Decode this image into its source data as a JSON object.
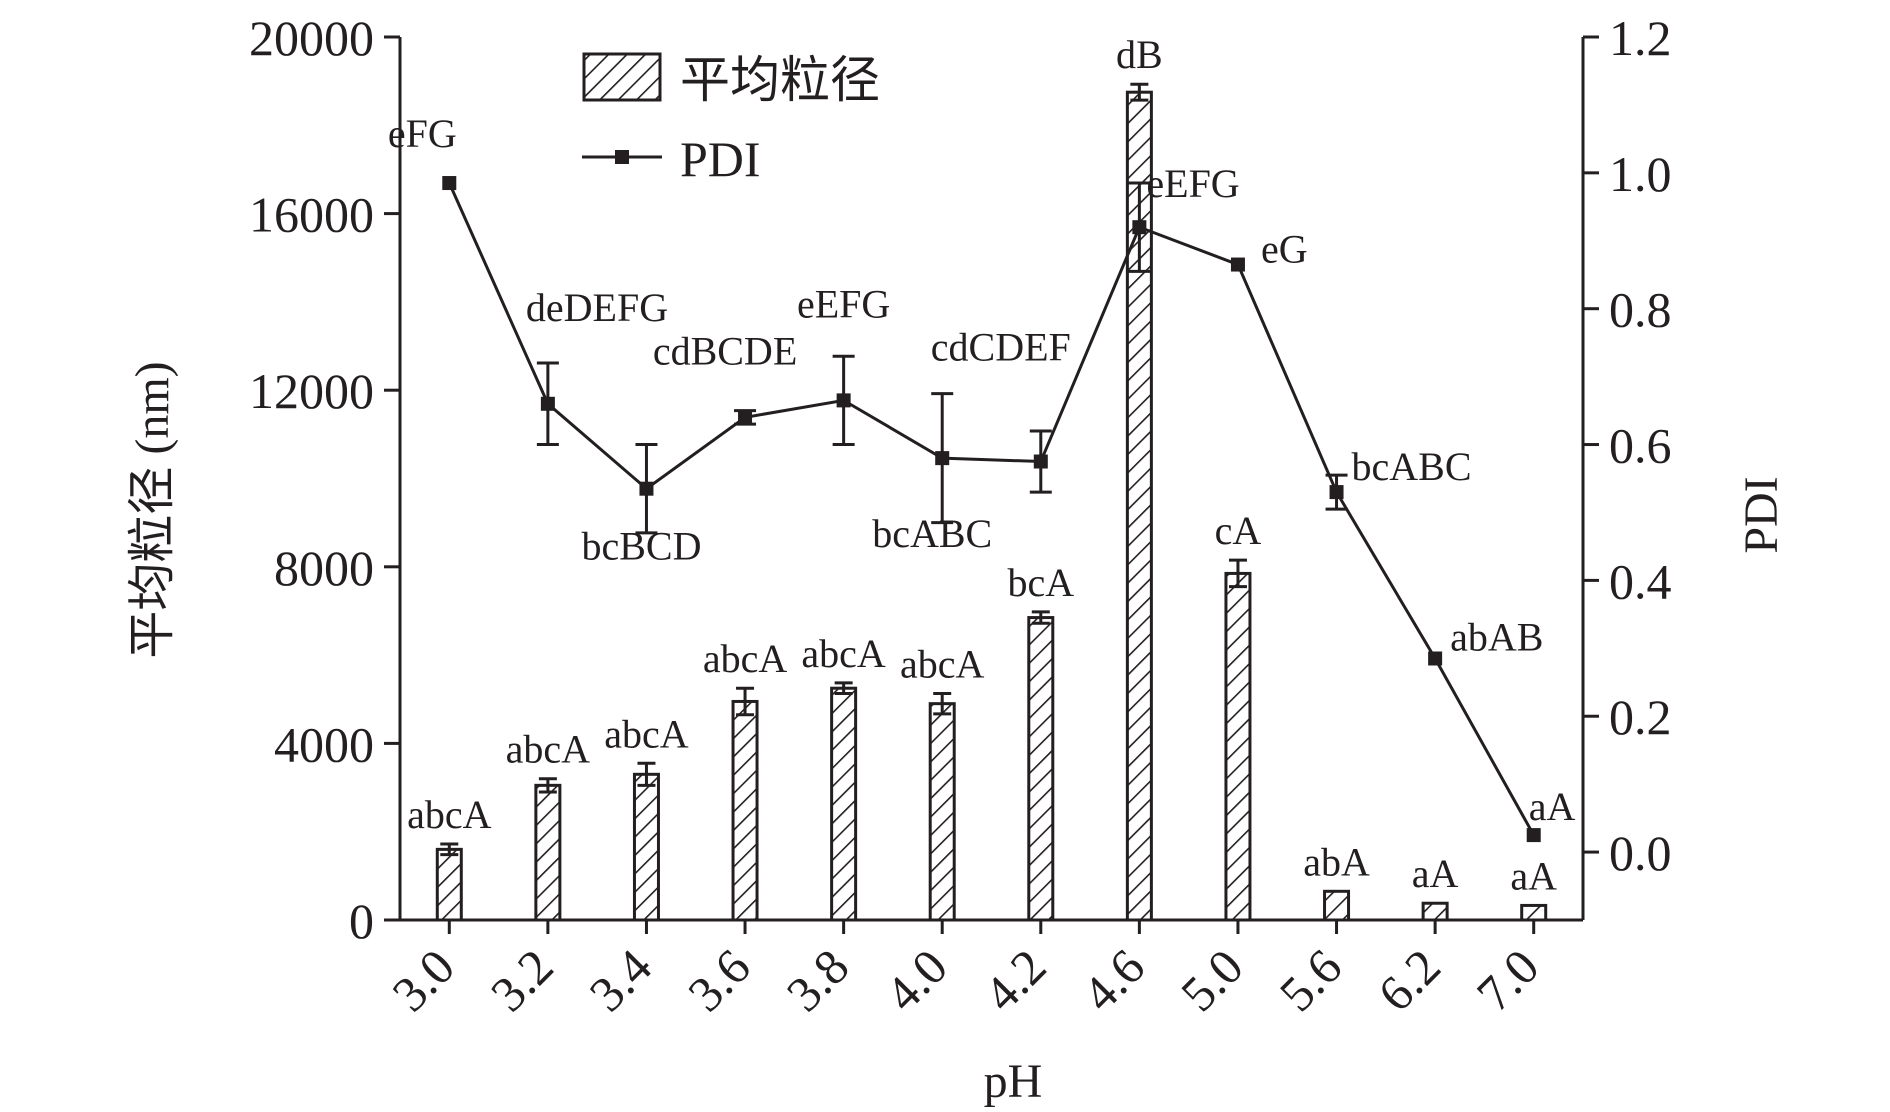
{
  "chart_data": {
    "type": "bar",
    "categories": [
      "3.0",
      "3.2",
      "3.4",
      "3.6",
      "3.8",
      "4.0",
      "4.2",
      "4.6",
      "5.0",
      "5.6",
      "6.2",
      "7.0"
    ],
    "xlabel": "pH",
    "ylabel_left": "平均粒径 (nm)",
    "ylabel_right": "PDI",
    "ylim_left": [
      0,
      20000
    ],
    "ylim_right": [
      -0.1,
      1.2
    ],
    "yticks_left": [
      "0",
      "4000",
      "8000",
      "12000",
      "16000",
      "20000"
    ],
    "yticks_right": [
      "0.0",
      "0.2",
      "0.4",
      "0.6",
      "0.8",
      "1.0",
      "1.2"
    ],
    "legend_position": "top-left",
    "grid": false,
    "series": [
      {
        "name": "平均粒径",
        "kind": "bar",
        "axis": "left",
        "pattern": "hatched",
        "values": [
          1600,
          3050,
          3300,
          4950,
          5250,
          4900,
          6850,
          18750,
          7850,
          650,
          380,
          330
        ],
        "errors": [
          120,
          150,
          250,
          300,
          120,
          230,
          130,
          180,
          300,
          0,
          0,
          0
        ],
        "labels": [
          "abcA",
          "abcA",
          "abcA",
          "abcA",
          "abcA",
          "abcA",
          "bcA",
          "dB",
          "cA",
          "abA",
          "aA",
          "aA"
        ]
      },
      {
        "name": "PDI",
        "kind": "line",
        "axis": "right",
        "color": "#231f20",
        "values": [
          0.985,
          0.66,
          0.535,
          0.64,
          0.665,
          0.58,
          0.575,
          0.92,
          0.865,
          0.53,
          0.285,
          0.025
        ],
        "errors": [
          0,
          0.06,
          0.065,
          0.01,
          0.065,
          0.095,
          0.045,
          0.065,
          0,
          0.025,
          0,
          0
        ],
        "labels": [
          "eFG",
          "deDEFG",
          "bcBCD",
          "cdBCDE",
          "eEFG",
          "bcABC",
          "cdCDEF",
          "eEFG",
          "eG",
          "bcABC",
          "abAB",
          "aA"
        ]
      }
    ]
  }
}
